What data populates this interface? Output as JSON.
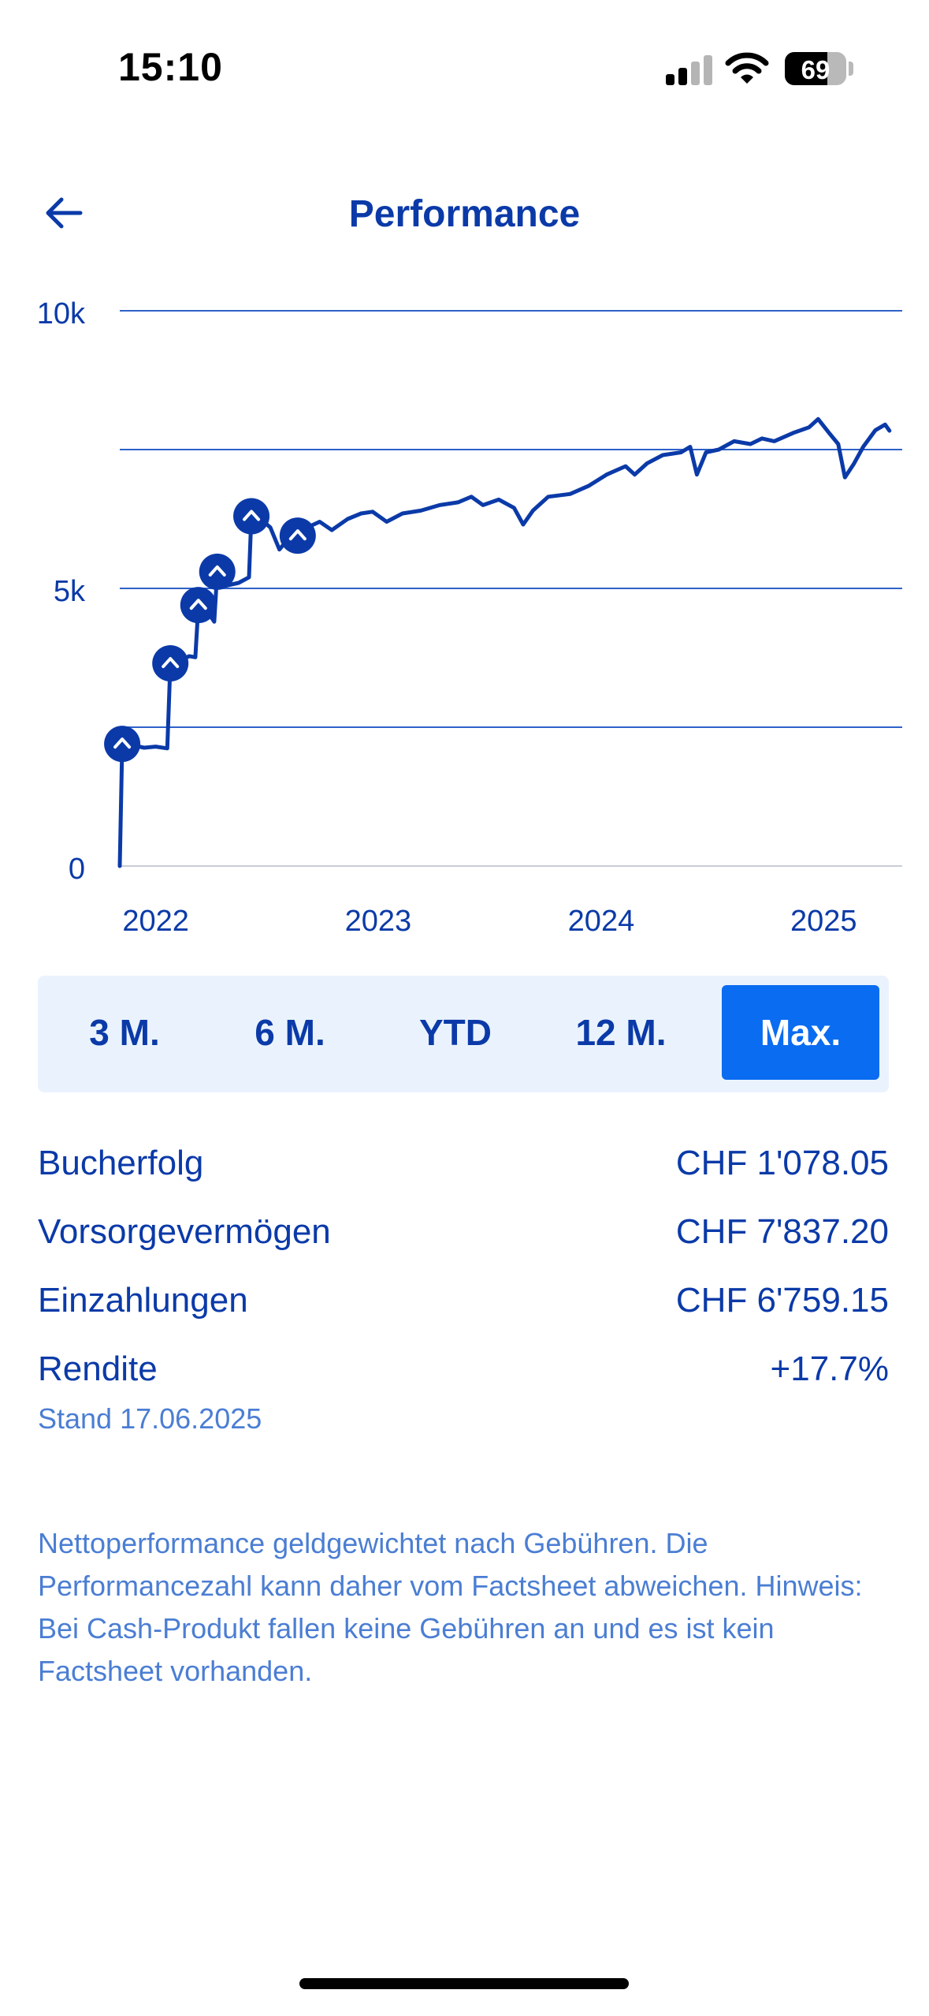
{
  "status_bar": {
    "time": "15:10",
    "battery": "69",
    "battery_level": 0.69
  },
  "header": {
    "title": "Performance",
    "back_icon": "arrow-left-icon"
  },
  "chart_data": {
    "type": "line",
    "series": [
      {
        "points": [
          [
            "2022-01-01",
            0
          ],
          [
            "2022-01-05",
            2200
          ],
          [
            "2022-01-20",
            2180
          ],
          [
            "2022-02-10",
            2130
          ],
          [
            "2022-03-01",
            2150
          ],
          [
            "2022-03-20",
            2120
          ],
          [
            "2022-03-25",
            3650
          ],
          [
            "2022-04-10",
            3700
          ],
          [
            "2022-04-25",
            3780
          ],
          [
            "2022-05-05",
            3760
          ],
          [
            "2022-05-10",
            4700
          ],
          [
            "2022-05-25",
            4580
          ],
          [
            "2022-06-05",
            4400
          ],
          [
            "2022-06-10",
            5300
          ],
          [
            "2022-06-25",
            5050
          ],
          [
            "2022-07-15",
            5100
          ],
          [
            "2022-08-01",
            5200
          ],
          [
            "2022-08-05",
            6300
          ],
          [
            "2022-08-20",
            6250
          ],
          [
            "2022-09-05",
            6100
          ],
          [
            "2022-09-20",
            5700
          ],
          [
            "2022-10-05",
            5900
          ],
          [
            "2022-10-20",
            5950
          ],
          [
            "2022-11-05",
            6100
          ],
          [
            "2022-11-25",
            6200
          ],
          [
            "2022-12-15",
            6050
          ],
          [
            "2023-01-10",
            6250
          ],
          [
            "2023-02-01",
            6350
          ],
          [
            "2023-02-20",
            6380
          ],
          [
            "2023-03-15",
            6200
          ],
          [
            "2023-04-10",
            6350
          ],
          [
            "2023-05-10",
            6400
          ],
          [
            "2023-06-10",
            6500
          ],
          [
            "2023-07-10",
            6550
          ],
          [
            "2023-08-01",
            6650
          ],
          [
            "2023-08-20",
            6500
          ],
          [
            "2023-09-15",
            6600
          ],
          [
            "2023-10-10",
            6450
          ],
          [
            "2023-10-25",
            6150
          ],
          [
            "2023-11-10",
            6400
          ],
          [
            "2023-12-05",
            6650
          ],
          [
            "2024-01-10",
            6700
          ],
          [
            "2024-02-10",
            6850
          ],
          [
            "2024-03-10",
            7050
          ],
          [
            "2024-04-10",
            7200
          ],
          [
            "2024-04-25",
            7050
          ],
          [
            "2024-05-15",
            7250
          ],
          [
            "2024-06-10",
            7400
          ],
          [
            "2024-07-10",
            7450
          ],
          [
            "2024-07-25",
            7550
          ],
          [
            "2024-08-05",
            7050
          ],
          [
            "2024-08-20",
            7450
          ],
          [
            "2024-09-10",
            7500
          ],
          [
            "2024-10-05",
            7650
          ],
          [
            "2024-11-01",
            7600
          ],
          [
            "2024-11-20",
            7700
          ],
          [
            "2024-12-10",
            7650
          ],
          [
            "2025-01-10",
            7800
          ],
          [
            "2025-02-05",
            7900
          ],
          [
            "2025-02-20",
            8050
          ],
          [
            "2025-03-10",
            7800
          ],
          [
            "2025-03-25",
            7600
          ],
          [
            "2025-04-05",
            7000
          ],
          [
            "2025-04-20",
            7250
          ],
          [
            "2025-05-05",
            7550
          ],
          [
            "2025-05-25",
            7850
          ],
          [
            "2025-06-10",
            7950
          ],
          [
            "2025-06-17",
            7840
          ]
        ]
      }
    ],
    "contributions": [
      "2022-01-05",
      "2022-03-25",
      "2022-05-10",
      "2022-06-10",
      "2022-08-05",
      "2022-10-20"
    ],
    "ylim": [
      0,
      10000
    ],
    "yticks": [
      {
        "value": 0,
        "label": "0"
      },
      {
        "value": 5000,
        "label": "5k"
      },
      {
        "value": 10000,
        "label": "10k"
      }
    ],
    "gridlines": [
      0,
      2500,
      5000,
      7500,
      10000
    ],
    "xticks": [
      {
        "date": "2022-03-01",
        "label": "2022"
      },
      {
        "date": "2023-03-01",
        "label": "2023"
      },
      {
        "date": "2024-03-01",
        "label": "2024"
      },
      {
        "date": "2025-03-01",
        "label": "2025"
      }
    ],
    "line_color": "#0b3aa8"
  },
  "range_tabs": [
    {
      "label": "3 M.",
      "active": false
    },
    {
      "label": "6 M.",
      "active": false
    },
    {
      "label": "YTD",
      "active": false
    },
    {
      "label": "12 M.",
      "active": false
    },
    {
      "label": "Max.",
      "active": true
    }
  ],
  "summary": [
    {
      "label": "Bucherfolg",
      "value": "CHF 1'078.05"
    },
    {
      "label": "Vorsorgevermögen",
      "value": "CHF 7'837.20"
    },
    {
      "label": "Einzahlungen",
      "value": "CHF 6'759.15"
    },
    {
      "label": "Rendite",
      "value": "+17.7%"
    }
  ],
  "as_of": "Stand 17.06.2025",
  "disclaimer": "Nettoperformance geldgewichtet nach Gebühren. Die Performancezahl kann daher vom Factsheet abweichen. Hinweis: Bei Cash-Produkt fallen keine Gebühren an und es ist kein Factsheet vorhanden.",
  "colors": {
    "primary": "#0b3aa8",
    "accent": "#0a6cf0",
    "segment_bg": "#eaf3fd",
    "muted_text": "#4b7ed3"
  }
}
